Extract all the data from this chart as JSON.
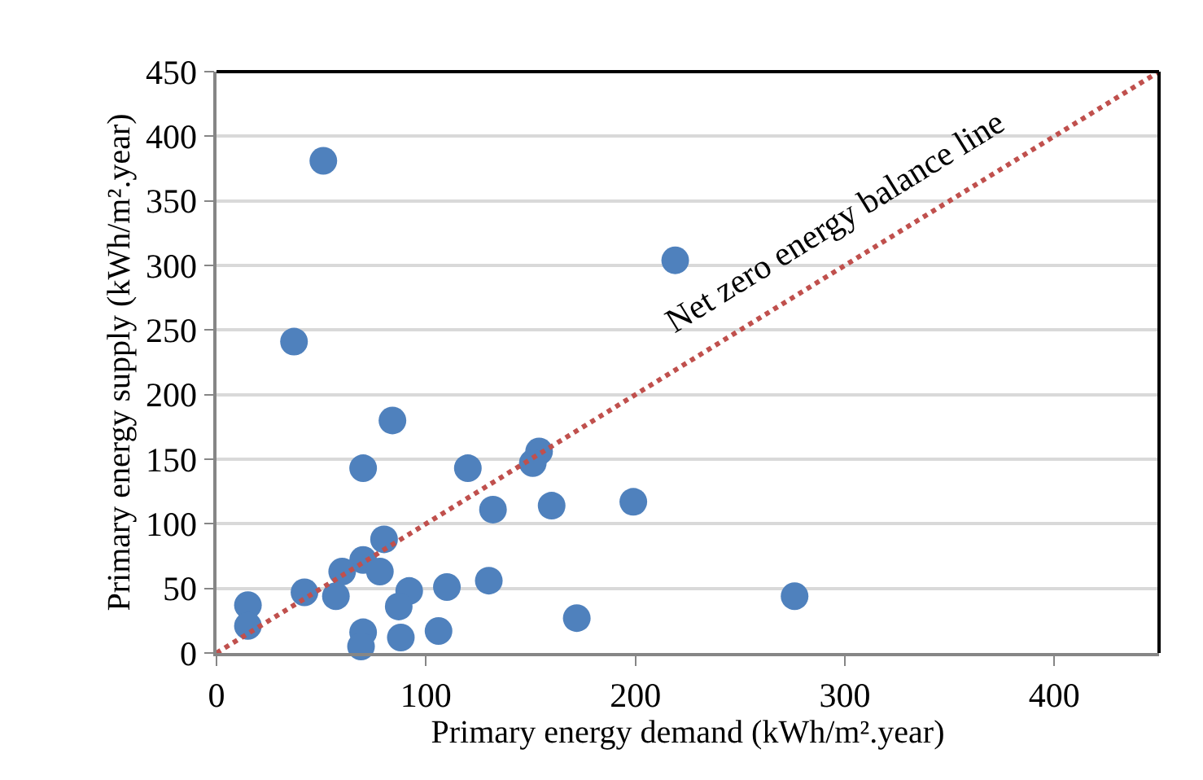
{
  "chart_data": {
    "type": "scatter",
    "xlabel": "Primary energy demand (kWh/m².year)",
    "ylabel": "Primary energy supply (kWh/m².year)",
    "xlim": [
      0,
      450
    ],
    "xticks": [
      0,
      100,
      200,
      300,
      400
    ],
    "ylim": [
      0,
      450
    ],
    "yticks": [
      0,
      50,
      100,
      150,
      200,
      250,
      300,
      350,
      400,
      450
    ],
    "grid": "y",
    "legend": false,
    "marker": "circle",
    "series": [
      {
        "color": "#4f81bd",
        "x": [
          51,
          219,
          37,
          84,
          70,
          120,
          154,
          151,
          132,
          160,
          199,
          80,
          70,
          60,
          78,
          42,
          57,
          92,
          87,
          110,
          130,
          15,
          15,
          70,
          69,
          88,
          106,
          172,
          276
        ],
        "values": [
          381,
          304,
          241,
          180,
          143,
          143,
          156,
          147,
          111,
          114,
          117,
          88,
          72,
          63,
          63,
          47,
          44,
          48,
          36,
          51,
          56,
          37,
          21,
          16,
          5,
          12,
          17,
          27,
          44
        ]
      },
      {
        "type": "line",
        "name": "Net zero energy balance line",
        "color": "#c0504d",
        "line_style": "dotted",
        "marker": "none",
        "x": [
          0,
          450
        ],
        "values": [
          0,
          450
        ]
      }
    ]
  }
}
